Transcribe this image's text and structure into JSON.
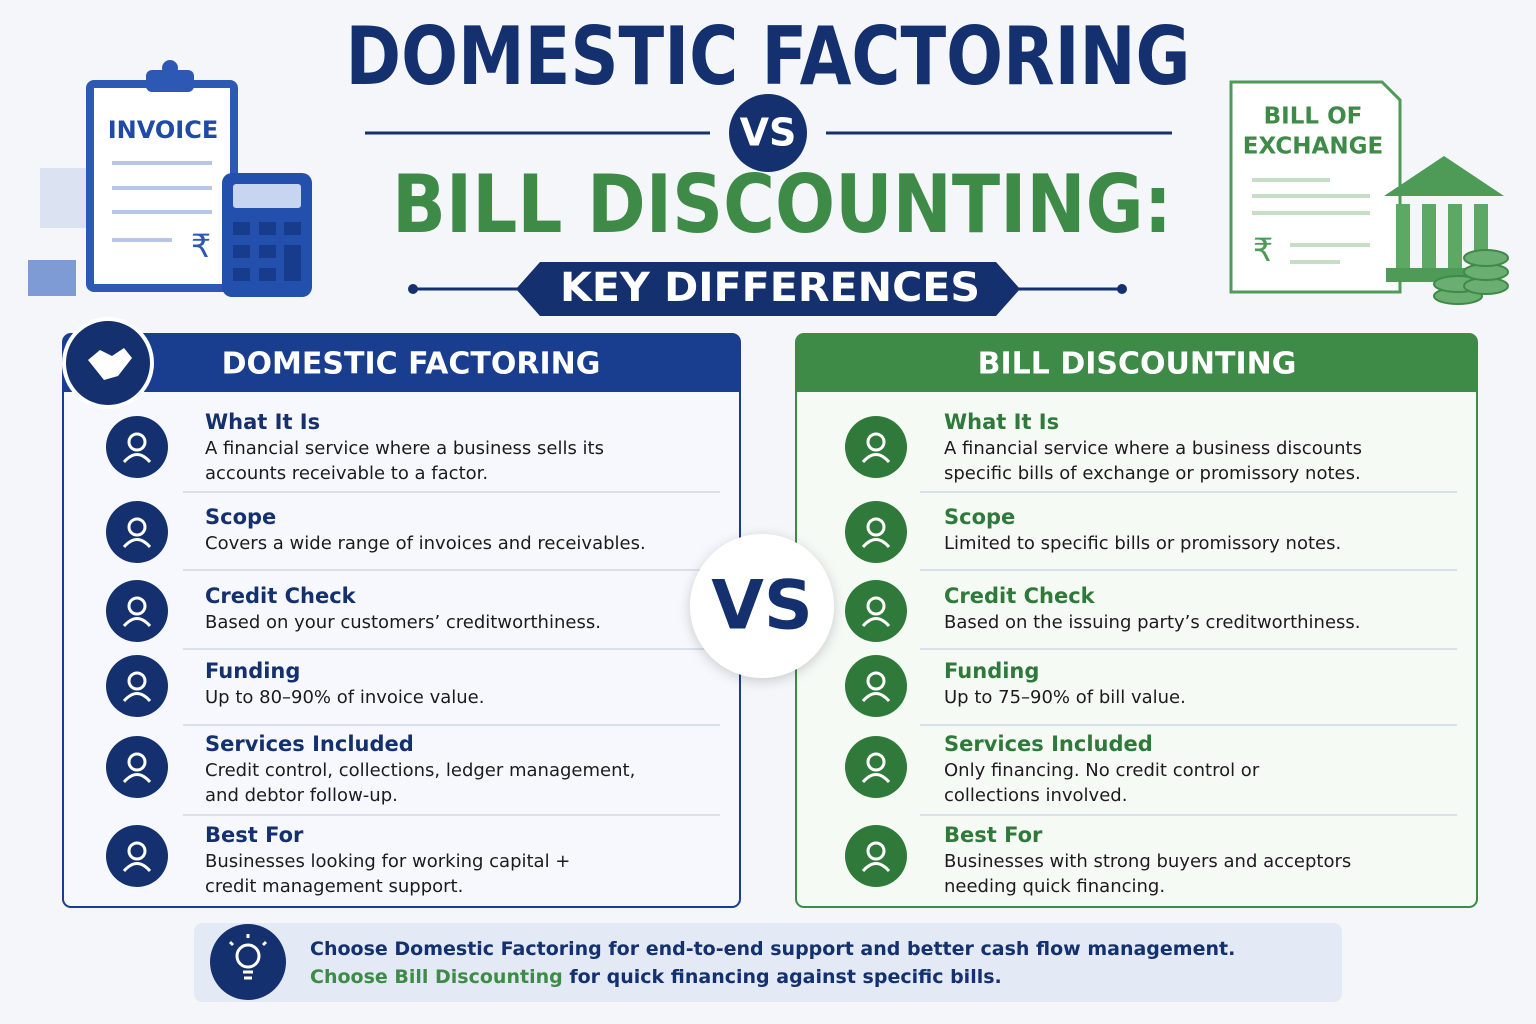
{
  "header": {
    "title_top": "DOMESTIC FACTORING",
    "vs": "VS",
    "title_bottom": "BILL DISCOUNTING:",
    "subtitle": "KEY DIFFERENCES"
  },
  "illustrations": {
    "invoice": {
      "label": "INVOICE",
      "symbol": "₹"
    },
    "bill": {
      "label_lines": [
        "BILL OF",
        "EXCHANGE"
      ],
      "symbol": "₹"
    }
  },
  "panels": [
    {
      "title": "DOMESTIC FACTORING",
      "rows": [
        {
          "label": "What It Is",
          "lines": [
            "A financial service where a business sells its",
            "accounts receivable to a factor."
          ]
        },
        {
          "label": "Scope",
          "lines": [
            "Covers a wide range of invoices and receivables."
          ]
        },
        {
          "label": "Credit Check",
          "lines": [
            "Based on your customers’ creditworthiness."
          ]
        },
        {
          "label": "Funding",
          "lines": [
            "Up to 80–90% of invoice value."
          ]
        },
        {
          "label": "Services Included",
          "lines": [
            "Credit control, collections, ledger management,",
            "and debtor follow-up."
          ]
        },
        {
          "label": "Best For",
          "lines": [
            "Businesses looking for working capital +",
            "credit management support."
          ]
        }
      ]
    },
    {
      "title": "BILL DISCOUNTING",
      "rows": [
        {
          "label": "What It Is",
          "lines": [
            "A financial service where a business discounts",
            "specific bills of exchange or promissory notes."
          ]
        },
        {
          "label": "Scope",
          "lines": [
            "Limited to specific bills or promissory notes."
          ]
        },
        {
          "label": "Credit Check",
          "lines": [
            "Based on the issuing party’s creditworthiness."
          ]
        },
        {
          "label": "Funding",
          "lines": [
            "Up to 75–90% of bill value."
          ]
        },
        {
          "label": "Services Included",
          "lines": [
            "Only financing. No credit control or",
            "collections involved."
          ]
        },
        {
          "label": "Best For",
          "lines": [
            "Businesses with strong buyers and acceptors",
            "needing quick financing."
          ]
        }
      ]
    }
  ],
  "center_vs": "VS",
  "footer": {
    "lines": [
      {
        "highlight": "Choose Domestic Factoring",
        "rest": " for end-to-end support and better cash flow management."
      },
      {
        "highlight": "Choose Bill Discounting",
        "rest": " for quick financing against specific bills."
      }
    ]
  }
}
